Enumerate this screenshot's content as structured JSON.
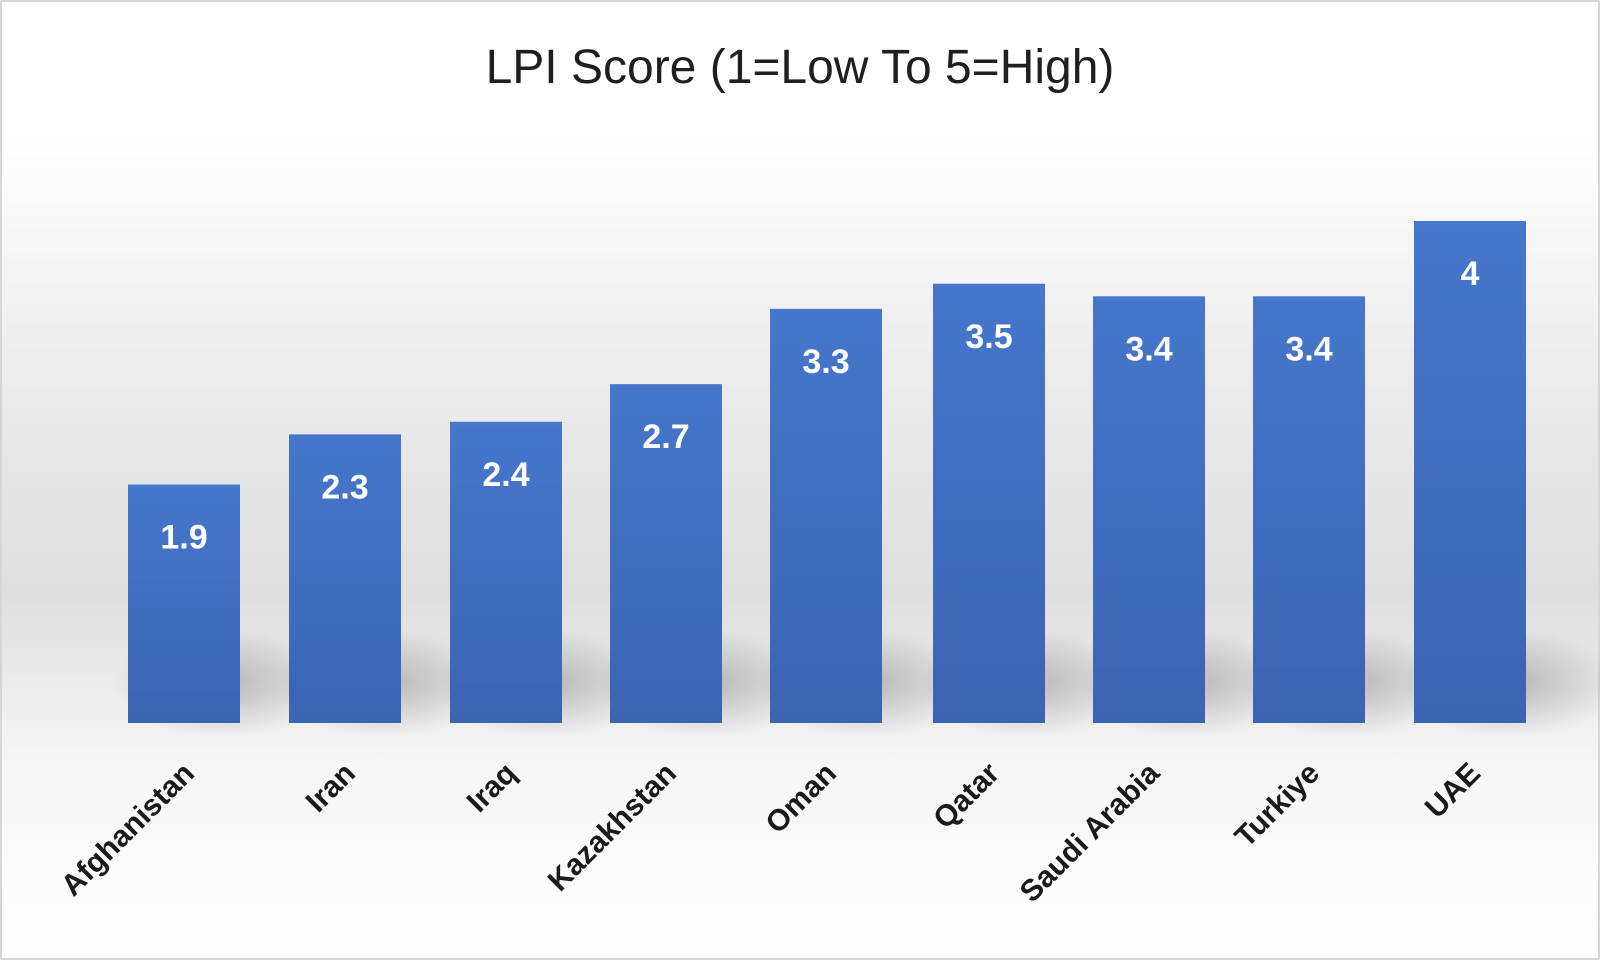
{
  "chart_data": {
    "type": "bar",
    "title": "LPI Score (1=Low To 5=High)",
    "categories": [
      "Afghanistan",
      "Iran",
      "Iraq",
      "Kazakhstan",
      "Oman",
      "Qatar",
      "Saudi Arabia",
      "Turkiye",
      "UAE"
    ],
    "values": [
      1.9,
      2.3,
      2.4,
      2.7,
      3.3,
      3.5,
      3.4,
      3.4,
      4
    ],
    "data_labels": [
      "1.9",
      "2.3",
      "2.4",
      "2.7",
      "3.3",
      "3.5",
      "3.4",
      "3.4",
      "4"
    ],
    "xlabel": "",
    "ylabel": "",
    "ylim": [
      0,
      5
    ],
    "grid": false,
    "legend": "none",
    "colors": {
      "bar": "#4472c4",
      "bar_dark": "#3a62b0"
    }
  }
}
